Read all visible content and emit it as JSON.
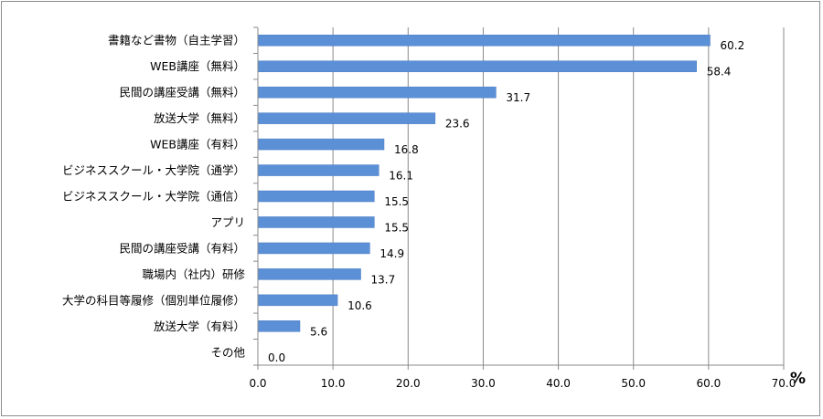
{
  "chart_data": {
    "type": "bar",
    "orientation": "horizontal",
    "categories": [
      "書籍など書物（自主学習）",
      "WEB講座（無料）",
      "民間の講座受講（無料）",
      "放送大学（無料）",
      "WEB講座（有料）",
      "ビジネススクール・大学院（通学）",
      "ビジネススクール・大学院（通信）",
      "アプリ",
      "民間の講座受講（有料）",
      "職場内（社内）研修",
      "大学の科目等履修（個別単位履修）",
      "放送大学（有料）",
      "その他"
    ],
    "values": [
      60.2,
      58.4,
      31.7,
      23.6,
      16.8,
      16.1,
      15.5,
      15.5,
      14.9,
      13.7,
      10.6,
      5.6,
      0.0
    ],
    "data_labels": [
      "60.2",
      "58.4",
      "31.7",
      "23.6",
      "16.8",
      "16.1",
      "15.5",
      "15.5",
      "14.9",
      "13.7",
      "10.6",
      "5.6",
      "0.0"
    ],
    "x_ticks": [
      "0.0",
      "10.0",
      "20.0",
      "30.0",
      "40.0",
      "50.0",
      "60.0",
      "70.0"
    ],
    "xlim": [
      0,
      70
    ],
    "x_unit": "%",
    "grid": "vertical",
    "bar_color": "#5b8fd6",
    "legend": "none"
  }
}
